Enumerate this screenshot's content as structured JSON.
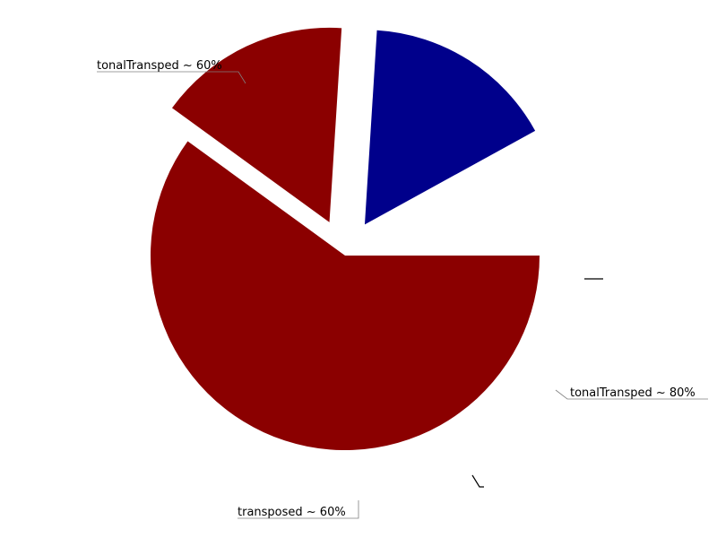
{
  "chart_data": {
    "type": "pie",
    "slices": [
      {
        "label": "tonalTransped ~ 60%",
        "value": 60,
        "color": "#8b0000",
        "exploded": false
      },
      {
        "label": "tonalTransped ~ 80%",
        "value": 16,
        "color": "#8b0000",
        "exploded": true
      },
      {
        "label": "transposed ~ 60%",
        "value": 16,
        "color": "#00008b",
        "exploded": true
      },
      {
        "label": "",
        "value": 8,
        "color": "#ffffff",
        "exploded": true
      }
    ]
  }
}
